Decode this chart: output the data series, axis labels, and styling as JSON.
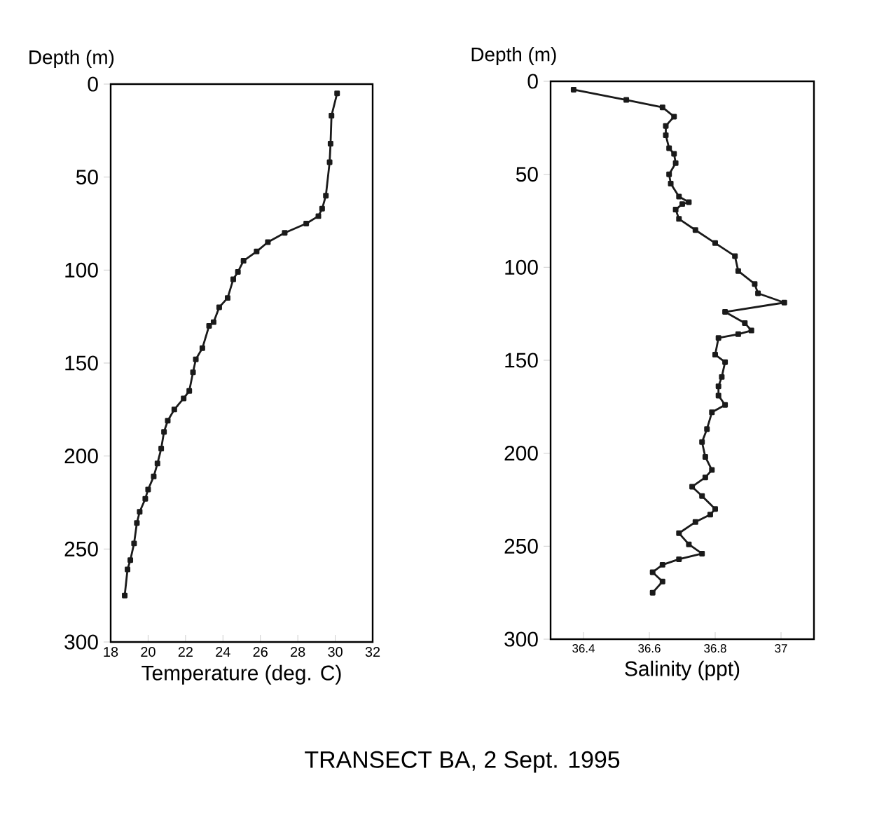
{
  "chart_data": [
    {
      "type": "line",
      "xlabel": "Temperature (deg. C)",
      "ylabel": "Depth (m)",
      "color": "#1a1a1a",
      "marker": "square",
      "line_style": "solid",
      "grid": false,
      "xlim": [
        18,
        32
      ],
      "xticks": [
        18,
        20,
        22,
        24,
        26,
        28,
        30,
        32
      ],
      "ylim": [
        300,
        0
      ],
      "yticks": [
        0,
        50,
        100,
        150,
        200,
        250,
        300
      ],
      "x": [
        30.1,
        29.8,
        29.75,
        29.7,
        29.5,
        29.3,
        29.1,
        28.45,
        27.3,
        26.4,
        25.8,
        25.1,
        24.8,
        24.55,
        24.25,
        23.8,
        23.5,
        23.26,
        22.9,
        22.55,
        22.4,
        22.2,
        21.9,
        21.4,
        21.05,
        20.85,
        20.7,
        20.5,
        20.3,
        20.0,
        19.85,
        19.55,
        19.4,
        19.25,
        19.05,
        18.9,
        18.75
      ],
      "values": [
        5,
        17,
        32,
        42,
        60,
        67,
        71,
        75,
        80,
        85,
        90,
        95,
        101,
        105,
        115,
        120,
        128,
        130,
        142,
        148,
        155,
        165,
        169,
        175,
        181,
        187,
        196,
        204,
        211,
        218,
        223,
        230,
        236,
        247,
        256,
        261,
        275
      ]
    },
    {
      "type": "line",
      "xlabel": "Salinity (ppt)",
      "ylabel": "Depth (m)",
      "color": "#1a1a1a",
      "marker": "square",
      "line_style": "solid",
      "grid": false,
      "xlim": [
        36.3,
        37.1
      ],
      "xticks": [
        36.4,
        36.6,
        36.8,
        37
      ],
      "ylim": [
        300,
        0
      ],
      "yticks": [
        0,
        50,
        100,
        150,
        200,
        250,
        300
      ],
      "annotations": [
        "TRANSECT BA, 2 Sept. 1995"
      ],
      "x": [
        36.37,
        36.53,
        36.64,
        36.675,
        36.65,
        36.65,
        36.66,
        36.675,
        36.68,
        36.66,
        36.665,
        36.69,
        36.72,
        36.7,
        36.68,
        36.69,
        36.74,
        36.8,
        36.86,
        36.87,
        36.92,
        36.93,
        37.01,
        36.83,
        36.89,
        36.91,
        36.87,
        36.81,
        36.8,
        36.83,
        36.82,
        36.81,
        36.81,
        36.83,
        36.79,
        36.775,
        36.76,
        36.77,
        36.79,
        36.77,
        36.73,
        36.76,
        36.8,
        36.785,
        36.74,
        36.69,
        36.72,
        36.76,
        36.69,
        36.64,
        36.61,
        36.64,
        36.61
      ],
      "values": [
        4.5,
        10,
        14,
        19,
        24,
        29,
        36,
        39,
        44,
        50,
        55,
        62,
        65,
        66,
        69,
        74,
        80,
        87,
        94,
        102,
        109,
        114,
        119,
        124,
        130,
        134,
        136,
        138,
        147,
        151,
        159,
        164,
        169,
        174,
        178,
        187,
        194,
        202,
        209,
        213,
        218,
        223,
        230,
        233,
        237,
        243,
        249,
        254,
        257,
        260,
        264,
        269,
        275
      ]
    }
  ]
}
